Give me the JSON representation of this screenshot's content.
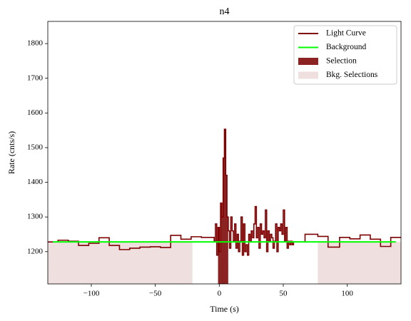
{
  "chart_data": {
    "type": "line",
    "title": "n4",
    "x_label": "Time (s)",
    "y_label": "Rate (cnts/s)",
    "xlim": [
      -134,
      142
    ],
    "ylim": [
      1107,
      1864
    ],
    "xticks": [
      {
        "value": -100,
        "label": "−100"
      },
      {
        "value": -50,
        "label": "−50"
      },
      0,
      50,
      100
    ],
    "yticks": [
      1200,
      1300,
      1400,
      1500,
      1600,
      1700,
      1800
    ],
    "legend": "upper right",
    "series": [
      {
        "name": "Light Curve",
        "color": "#7f0000",
        "step": true,
        "x": [
          -134,
          -126,
          -118,
          -110,
          -102,
          -94,
          -86,
          -78,
          -70,
          -62,
          -54,
          -46,
          -38,
          -30,
          -22,
          -14,
          -4,
          -3,
          -2,
          -1,
          0,
          1,
          2,
          3,
          4,
          5,
          6,
          7,
          8,
          9,
          10,
          11,
          12,
          13,
          14,
          15,
          16,
          17,
          18,
          19,
          20,
          21,
          22,
          23,
          24,
          25,
          26,
          27,
          28,
          29,
          30,
          31,
          32,
          33,
          34,
          35,
          36,
          37,
          38,
          39,
          40,
          41,
          42,
          43,
          44,
          45,
          46,
          47,
          48,
          49,
          50,
          51,
          52,
          53,
          54,
          55,
          56,
          57,
          58,
          59,
          60,
          67,
          77,
          85,
          94,
          102,
          110,
          118,
          126,
          134
        ],
        "values": [
          1228,
          1233,
          1230,
          1218,
          1224,
          1240,
          1218,
          1206,
          1210,
          1213,
          1214,
          1212,
          1247,
          1236,
          1243,
          1241,
          1230,
          1280,
          1190,
          1270,
          1200,
          1340,
          1300,
          1470,
          1553,
          1420,
          1300,
          1260,
          1210,
          1300,
          1260,
          1230,
          1280,
          1210,
          1250,
          1200,
          1230,
          1300,
          1190,
          1280,
          1200,
          1220,
          1190,
          1250,
          1230,
          1260,
          1240,
          1280,
          1330,
          1240,
          1270,
          1210,
          1280,
          1250,
          1260,
          1240,
          1320,
          1200,
          1260,
          1230,
          1250,
          1240,
          1210,
          1230,
          1280,
          1200,
          1270,
          1260,
          1280,
          1250,
          1320,
          1230,
          1270,
          1210,
          1230,
          1220,
          1230,
          1220,
          1228,
          1228,
          1228,
          1250,
          1244,
          1213,
          1241,
          1237,
          1248,
          1236,
          1215,
          1241
        ]
      },
      {
        "name": "Background",
        "color": "#00ff00",
        "x": [
          -130,
          138
        ],
        "values": [
          1228,
          1228
        ]
      }
    ],
    "selection": {
      "name": "Selection",
      "color": "#8b2323",
      "ranges": [
        [
          -1,
          7
        ]
      ]
    },
    "bkg_selections": {
      "name": "Bkg. Selections",
      "color": "#efdfdf",
      "ranges": [
        [
          -134,
          -21
        ],
        [
          77,
          142
        ]
      ]
    }
  }
}
